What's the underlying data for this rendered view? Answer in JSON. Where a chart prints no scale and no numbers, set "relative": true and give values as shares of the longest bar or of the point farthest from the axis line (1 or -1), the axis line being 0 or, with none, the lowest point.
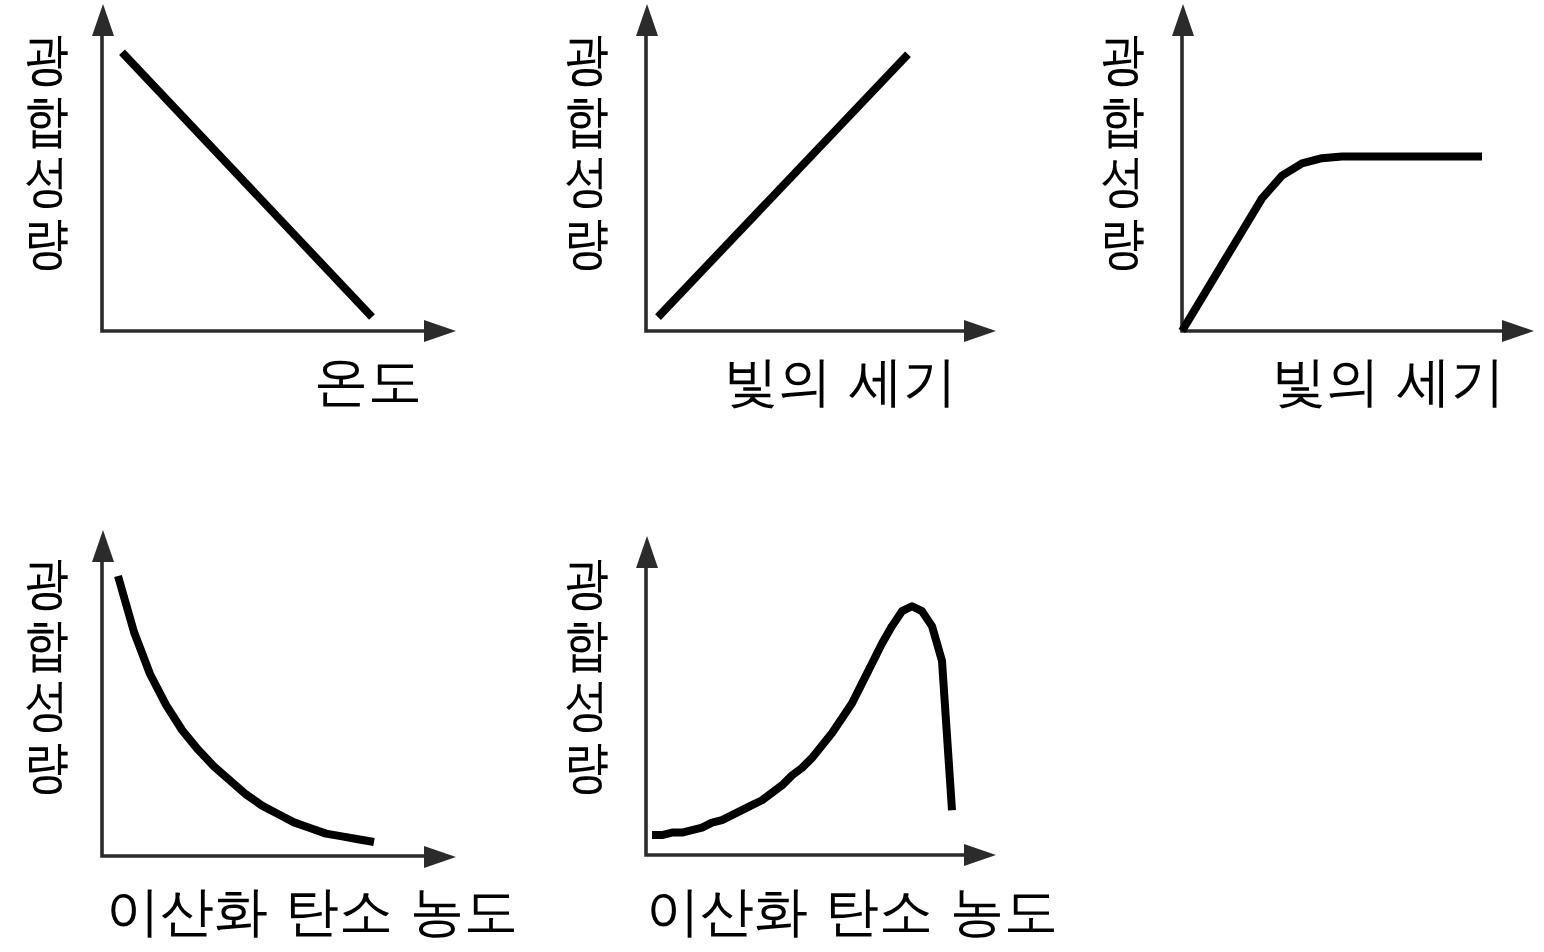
{
  "chart_data": [
    {
      "type": "line",
      "xlabel": "온도",
      "ylabel": "광합성량",
      "categories": [
        null,
        null
      ],
      "relative": true,
      "color": "#000000",
      "line_style": "solid",
      "values": [
        1,
        0.05
      ]
    },
    {
      "type": "line",
      "xlabel": "빛의 세기",
      "ylabel": "광합성량",
      "categories": [
        null,
        null
      ],
      "relative": true,
      "color": "#000000",
      "line_style": "solid",
      "values": [
        0.05,
        1
      ]
    },
    {
      "type": "line",
      "xlabel": "빛의 세기",
      "ylabel": "광합성량",
      "categories": [
        null,
        null,
        null,
        null,
        null,
        null,
        null,
        null,
        null,
        null,
        null,
        null,
        null,
        null,
        null,
        null
      ],
      "relative": true,
      "color": "#000000",
      "line_style": "solid",
      "values": [
        0,
        0.19,
        0.38,
        0.57,
        0.76,
        0.89,
        0.96,
        0.99,
        1,
        1,
        1,
        1,
        1,
        1,
        1,
        1
      ]
    },
    {
      "type": "line",
      "xlabel": "이산화 탄소 농도",
      "ylabel": "광합성량",
      "categories": [
        null,
        null,
        null,
        null,
        null,
        null,
        null,
        null,
        null,
        null,
        null,
        null,
        null,
        null,
        null,
        null,
        null
      ],
      "relative": true,
      "color": "#000000",
      "line_style": "solid",
      "values": [
        1,
        0.8,
        0.65,
        0.54,
        0.45,
        0.38,
        0.32,
        0.27,
        0.22,
        0.18,
        0.15,
        0.12,
        0.1,
        0.08,
        0.07,
        0.06,
        0.05
      ]
    },
    {
      "type": "line",
      "xlabel": "이산화 탄소 농도",
      "ylabel": "광합성량",
      "categories": [
        null,
        null,
        null,
        null,
        null,
        null,
        null,
        null,
        null,
        null,
        null,
        null,
        null,
        null,
        null,
        null,
        null,
        null,
        null,
        null,
        null,
        null,
        null,
        null,
        null,
        null,
        null,
        null,
        null,
        null,
        null
      ],
      "relative": true,
      "color": "#000000",
      "line_style": "solid",
      "values": [
        0.08,
        0.08,
        0.09,
        0.09,
        0.1,
        0.11,
        0.13,
        0.14,
        0.16,
        0.18,
        0.2,
        0.22,
        0.25,
        0.28,
        0.32,
        0.35,
        0.39,
        0.44,
        0.49,
        0.55,
        0.61,
        0.69,
        0.77,
        0.85,
        0.92,
        0.98,
        1,
        0.98,
        0.92,
        0.78,
        0.18
      ]
    }
  ]
}
